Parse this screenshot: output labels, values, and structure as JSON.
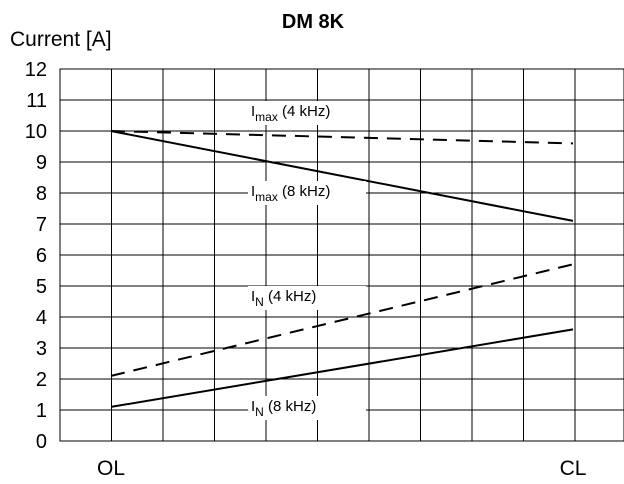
{
  "chart_data": {
    "type": "line",
    "title": "DM 8K",
    "ylabel": "Current [A]",
    "xlabel": "",
    "ylim": [
      0,
      12
    ],
    "yticks": [
      "0",
      "1",
      "2",
      "3",
      "4",
      "5",
      "6",
      "7",
      "8",
      "9",
      "10",
      "11",
      "12"
    ],
    "x_categories": [
      "OL",
      "CL"
    ],
    "grid": true,
    "series": [
      {
        "name_main": "I",
        "name_sub": "max",
        "name_rest": " (4 kHz)",
        "style": "dashed",
        "x": [
          "OL",
          "CL"
        ],
        "y": [
          10.0,
          9.6
        ]
      },
      {
        "name_main": "I",
        "name_sub": "max",
        "name_rest": " (8 kHz)",
        "style": "solid",
        "x": [
          "OL",
          "CL"
        ],
        "y": [
          10.0,
          7.1
        ]
      },
      {
        "name_main": "I",
        "name_sub": "N",
        "name_rest": " (4 kHz)",
        "style": "dashed",
        "x": [
          "OL",
          "CL"
        ],
        "y": [
          2.1,
          5.7
        ]
      },
      {
        "name_main": "I",
        "name_sub": "N",
        "name_rest": " (8 kHz)",
        "style": "solid",
        "x": [
          "OL",
          "CL"
        ],
        "y": [
          1.1,
          3.6
        ]
      }
    ]
  }
}
